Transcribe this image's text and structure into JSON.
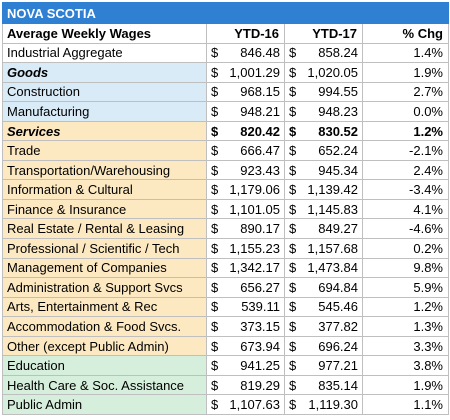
{
  "table": {
    "title": "NOVA SCOTIA",
    "headers": {
      "label": "Average Weekly Wages",
      "ytd16": "YTD-16",
      "ytd17": "YTD-17",
      "chg": "% Chg"
    },
    "currency_symbol": "$",
    "rows": [
      {
        "label": "Industrial Aggregate",
        "ytd16": "846.48",
        "ytd17": "858.24",
        "chg": "1.4%",
        "group": "neutral",
        "style": "normal"
      },
      {
        "label": "Goods",
        "ytd16": "1,001.29",
        "ytd17": "1,020.05",
        "chg": "1.9%",
        "group": "goods",
        "style": "label-bold-italic"
      },
      {
        "label": "Construction",
        "ytd16": "968.15",
        "ytd17": "994.55",
        "chg": "2.7%",
        "group": "goods",
        "style": "normal"
      },
      {
        "label": "Manufacturing",
        "ytd16": "948.21",
        "ytd17": "948.23",
        "chg": "0.0%",
        "group": "goods",
        "style": "normal"
      },
      {
        "label": "Services",
        "ytd16": "820.42",
        "ytd17": "830.52",
        "chg": "1.2%",
        "group": "services",
        "style": "row-bold"
      },
      {
        "label": "Trade",
        "ytd16": "666.47",
        "ytd17": "652.24",
        "chg": "-2.1%",
        "group": "services",
        "style": "normal"
      },
      {
        "label": "Transportation/Warehousing",
        "ytd16": "923.43",
        "ytd17": "945.34",
        "chg": "2.4%",
        "group": "services",
        "style": "normal"
      },
      {
        "label": "Information & Cultural",
        "ytd16": "1,179.06",
        "ytd17": "1,139.42",
        "chg": "-3.4%",
        "group": "services",
        "style": "normal"
      },
      {
        "label": "Finance & Insurance",
        "ytd16": "1,101.05",
        "ytd17": "1,145.83",
        "chg": "4.1%",
        "group": "services",
        "style": "normal"
      },
      {
        "label": "Real Estate / Rental & Leasing",
        "ytd16": "890.17",
        "ytd17": "849.27",
        "chg": "-4.6%",
        "group": "services",
        "style": "normal"
      },
      {
        "label": "Professional / Scientific / Tech",
        "ytd16": "1,155.23",
        "ytd17": "1,157.68",
        "chg": "0.2%",
        "group": "services",
        "style": "normal"
      },
      {
        "label": "Management of Companies",
        "ytd16": "1,342.17",
        "ytd17": "1,473.84",
        "chg": "9.8%",
        "group": "services",
        "style": "normal"
      },
      {
        "label": "Administration & Support Svcs",
        "ytd16": "656.27",
        "ytd17": "694.84",
        "chg": "5.9%",
        "group": "services",
        "style": "normal"
      },
      {
        "label": "Arts, Entertainment & Rec",
        "ytd16": "539.11",
        "ytd17": "545.46",
        "chg": "1.2%",
        "group": "services",
        "style": "normal"
      },
      {
        "label": "Accommodation & Food Svcs.",
        "ytd16": "373.15",
        "ytd17": "377.82",
        "chg": "1.3%",
        "group": "services",
        "style": "normal"
      },
      {
        "label": "Other (except Public Admin)",
        "ytd16": "673.94",
        "ytd17": "696.24",
        "chg": "3.3%",
        "group": "services",
        "style": "normal"
      },
      {
        "label": "Education",
        "ytd16": "941.25",
        "ytd17": "977.21",
        "chg": "3.8%",
        "group": "public",
        "style": "normal"
      },
      {
        "label": "Health Care & Soc. Assistance",
        "ytd16": "819.29",
        "ytd17": "835.14",
        "chg": "1.9%",
        "group": "public",
        "style": "normal"
      },
      {
        "label": "Public Admin",
        "ytd16": "1,107.63",
        "ytd17": "1,119.30",
        "chg": "1.1%",
        "group": "public",
        "style": "normal"
      }
    ]
  }
}
